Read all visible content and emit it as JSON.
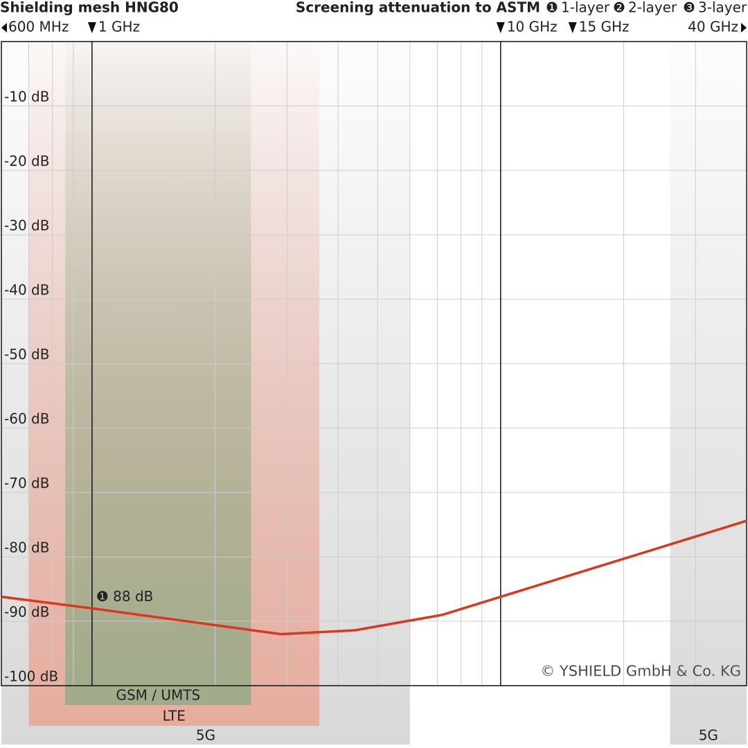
{
  "chart_data": {
    "type": "line",
    "title": "Shielding mesh HNG80",
    "subtitle": "Screening attenuation to ASTM",
    "legend": [
      {
        "marker": "❶",
        "label": "1-layer"
      },
      {
        "marker": "❷",
        "label": "2-layer"
      },
      {
        "marker": "❸",
        "label": "3-layer"
      }
    ],
    "x_scale": "log",
    "x": [
      600,
      1000,
      2900,
      4400,
      7200,
      10000,
      40000
    ],
    "series": [
      {
        "name": "1-layer",
        "color": "#d9381e",
        "values": [
          -86.2,
          -88,
          -92,
          -91.4,
          -89,
          -86.2,
          -74.4
        ]
      }
    ],
    "annotation": {
      "text": "❶ 88 dB",
      "point": 1
    },
    "xlim": [
      600,
      40000
    ],
    "xticks": [
      {
        "value": 600,
        "label": "600 MHz"
      },
      {
        "value": 1000,
        "label": "1 GHz"
      },
      {
        "value": 10000,
        "label": "10 GHz"
      },
      {
        "value": 15000,
        "label": "15 GHz"
      },
      {
        "value": 40000,
        "label": "40 GHz"
      }
    ],
    "x_grid": [
      700,
      800,
      900,
      2000,
      3000,
      4000,
      5000,
      6000,
      7000,
      8000,
      9000,
      20000,
      30000
    ],
    "x_highlight": [
      1000,
      10000
    ],
    "ylim": [
      -100,
      0
    ],
    "yticks": [
      {
        "value": -10,
        "label": "-10 dB"
      },
      {
        "value": -20,
        "label": "-20 dB"
      },
      {
        "value": -30,
        "label": "-30 dB"
      },
      {
        "value": -40,
        "label": "-40 dB"
      },
      {
        "value": -50,
        "label": "-50 dB"
      },
      {
        "value": -60,
        "label": "-60 dB"
      },
      {
        "value": -70,
        "label": "-70 dB"
      },
      {
        "value": -80,
        "label": "-80 dB"
      },
      {
        "value": -90,
        "label": "-90 dB"
      },
      {
        "value": -100,
        "label": "-100 dB"
      }
    ],
    "grid": true,
    "bands": [
      {
        "label": "5G",
        "range": [
          600,
          6000
        ],
        "color": "#d4d4d4"
      },
      {
        "label": "5G",
        "range": [
          26000,
          40000
        ],
        "color": "#d4d4d4"
      },
      {
        "label": "LTE",
        "range": [
          700,
          3600
        ],
        "color": "#e8a898"
      },
      {
        "label": "GSM / UMTS",
        "range": [
          860,
          2450
        ],
        "color": "#98ab88"
      }
    ],
    "copyright": "© YSHIELD GmbH & Co. KG"
  }
}
